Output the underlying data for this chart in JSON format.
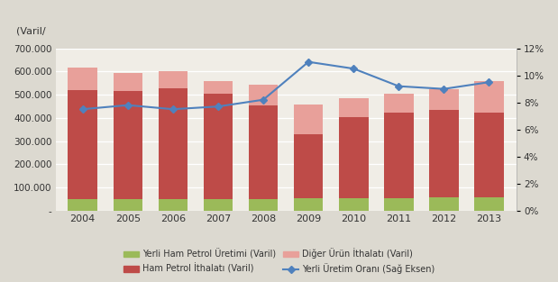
{
  "years": [
    2004,
    2005,
    2006,
    2007,
    2008,
    2009,
    2010,
    2011,
    2012,
    2013
  ],
  "yerli_ham_petrol": [
    50000,
    50000,
    48000,
    48000,
    48000,
    55000,
    55000,
    55000,
    58000,
    58000
  ],
  "ham_petrol_ithalati": [
    470000,
    465000,
    480000,
    458000,
    405000,
    275000,
    348000,
    368000,
    375000,
    365000
  ],
  "diger_urun_ithalati": [
    98000,
    78000,
    72000,
    54000,
    92000,
    128000,
    82000,
    82000,
    90000,
    135000
  ],
  "yerli_uretim_orani": [
    7.5,
    7.8,
    7.5,
    7.7,
    8.2,
    11.0,
    10.5,
    9.2,
    9.0,
    9.5
  ],
  "bar_width": 0.65,
  "ylim_left": [
    0,
    700000
  ],
  "ylim_right": [
    0,
    12
  ],
  "yticks_left": [
    0,
    100000,
    200000,
    300000,
    400000,
    500000,
    600000,
    700000
  ],
  "ytick_labels_left": [
    "-",
    "100.000",
    "200.000",
    "300.000",
    "400.000",
    "500.000",
    "600.000",
    "700.000"
  ],
  "ytick_pct": [
    0,
    2,
    4,
    6,
    8,
    10,
    12
  ],
  "color_green": "#9bba59",
  "color_dark_red": "#be4b48",
  "color_pink": "#e8a09a",
  "color_line": "#4f81bd",
  "bg_color": "#dcd9d0",
  "plot_bg": "#f0ede6",
  "title_left": "(Varil/",
  "legend_labels": [
    "Yerli Ham Petrol Üretimi (Varil)",
    "Ham Petrol İthalatı (Varil)",
    "Diğer Ürün İthalatı (Varil)",
    "Yerli Üretim Oranı (Sağ Eksen)"
  ]
}
